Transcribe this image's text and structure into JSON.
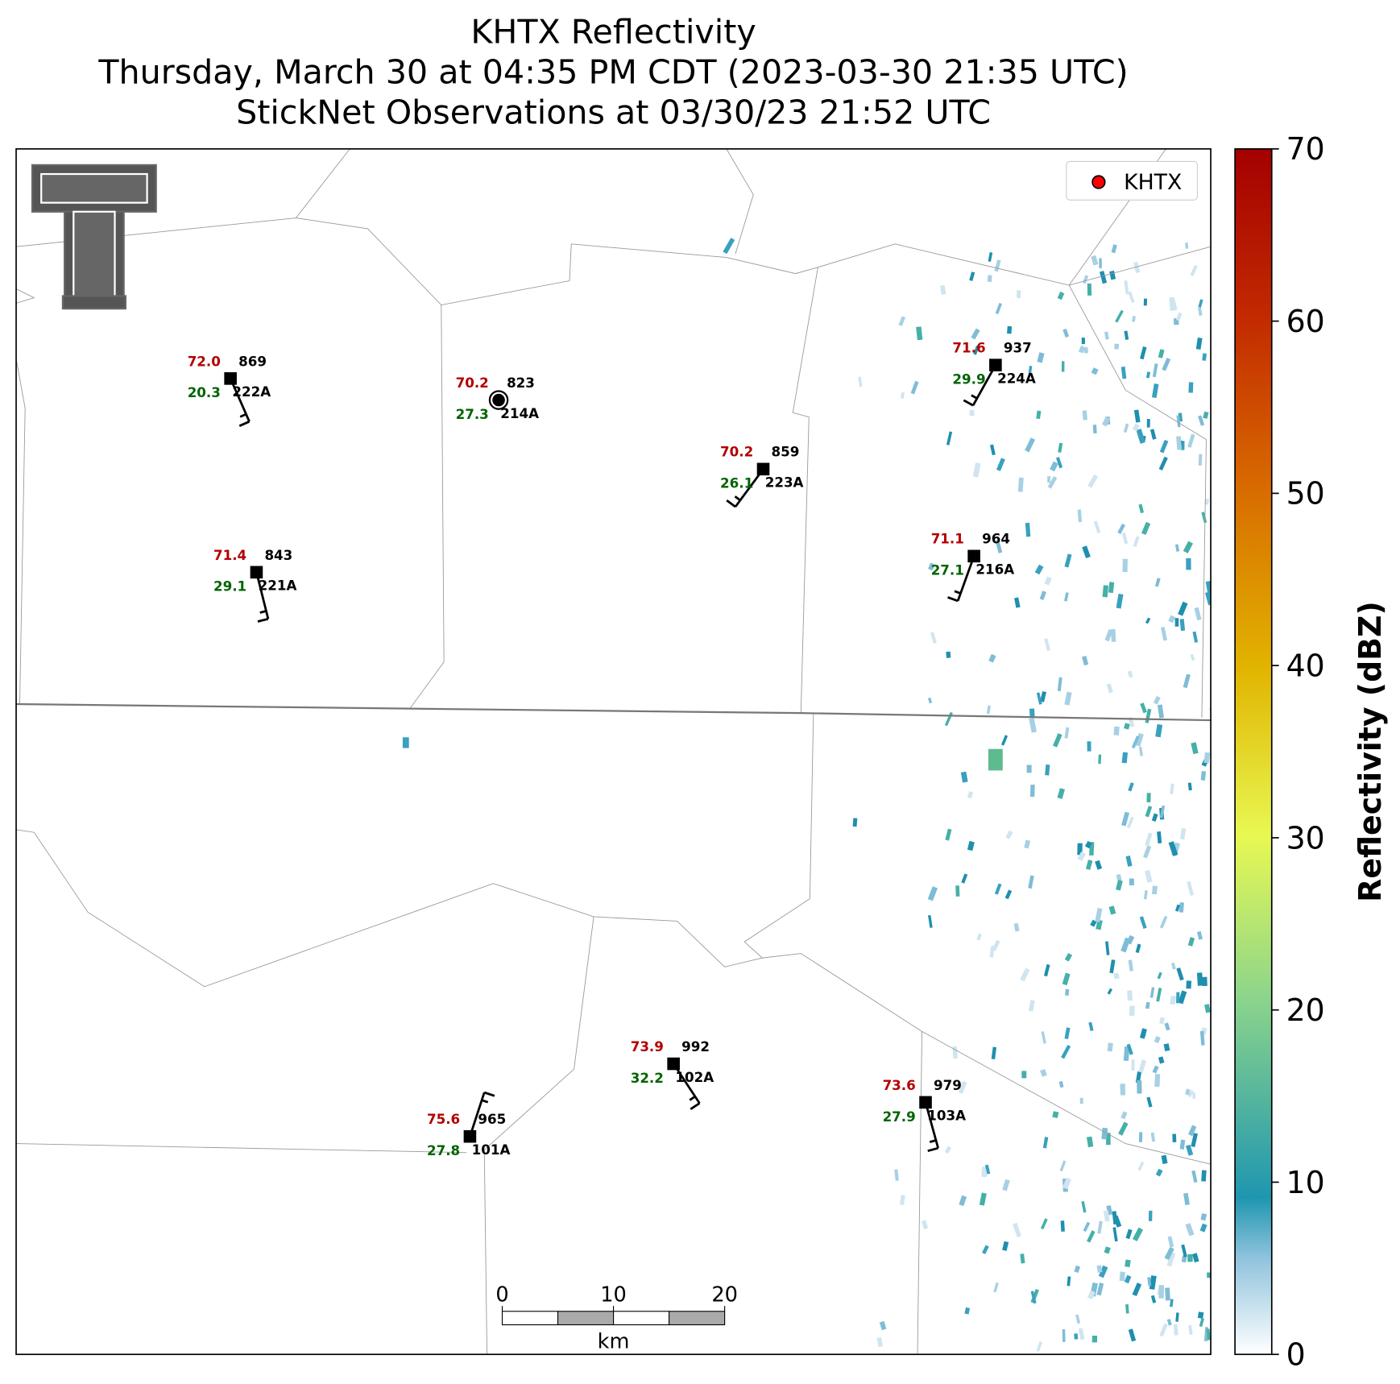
{
  "header": {
    "title_lines": [
      "KHTX Reflectivity",
      "Thursday, March 30 at 04:35 PM CDT (2023-03-30 21:35 UTC)",
      "StickNet Observations at 03/30/23 21:52 UTC"
    ]
  },
  "legend": {
    "label": "KHTX",
    "color": "#ff0000"
  },
  "colorbar": {
    "label": "Reflectivity (dBZ)",
    "lim": [
      0,
      70
    ],
    "ticks": [
      0,
      10,
      20,
      30,
      40,
      50,
      60,
      70
    ]
  },
  "scale_bar": {
    "ticks": [
      0,
      10,
      20
    ],
    "unit": "km"
  },
  "stations": [
    {
      "id": "222A",
      "temp": "72.0",
      "pressure": "869",
      "dewpoint": "20.3"
    },
    {
      "id": "214A",
      "temp": "70.2",
      "pressure": "823",
      "dewpoint": "27.3"
    },
    {
      "id": "223A",
      "temp": "70.2",
      "pressure": "859",
      "dewpoint": "26.1"
    },
    {
      "id": "224A",
      "temp": "71.6",
      "pressure": "937",
      "dewpoint": "29.9"
    },
    {
      "id": "216A",
      "temp": "71.1",
      "pressure": "964",
      "dewpoint": "27.1"
    },
    {
      "id": "221A",
      "temp": "71.4",
      "pressure": "843",
      "dewpoint": "29.1"
    },
    {
      "id": "101A",
      "temp": "75.6",
      "pressure": "965",
      "dewpoint": "27.8"
    },
    {
      "id": "102A",
      "temp": "73.9",
      "pressure": "992",
      "dewpoint": "32.2"
    },
    {
      "id": "103A",
      "temp": "73.6",
      "pressure": "979",
      "dewpoint": "27.9"
    }
  ]
}
